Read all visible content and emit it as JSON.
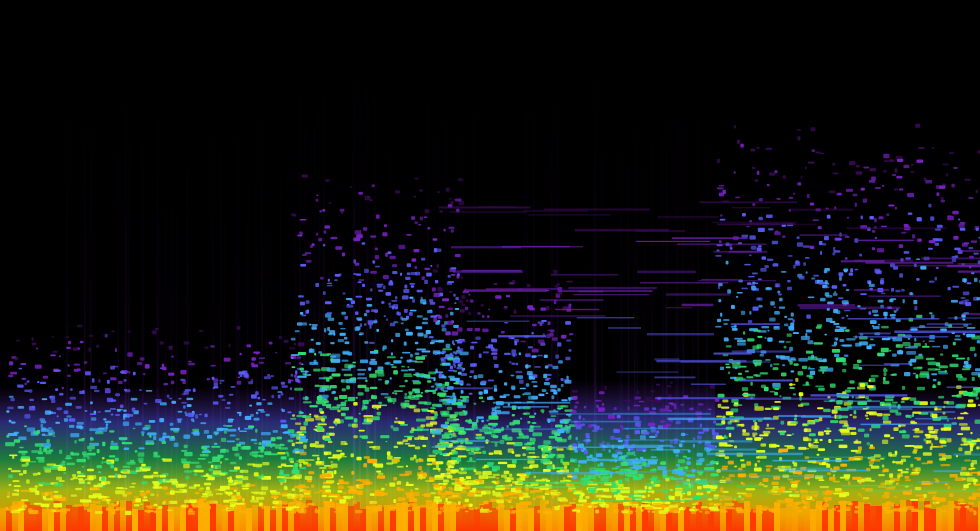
{
  "image": {
    "kind": "spectrogram",
    "background_color": "#000000",
    "colormap": [
      "#000000",
      "#3a0a55",
      "#7a22c8",
      "#5a5cff",
      "#3fb0ff",
      "#30e070",
      "#e6ff1a",
      "#ffb000",
      "#ff3a00"
    ],
    "texts": []
  }
}
